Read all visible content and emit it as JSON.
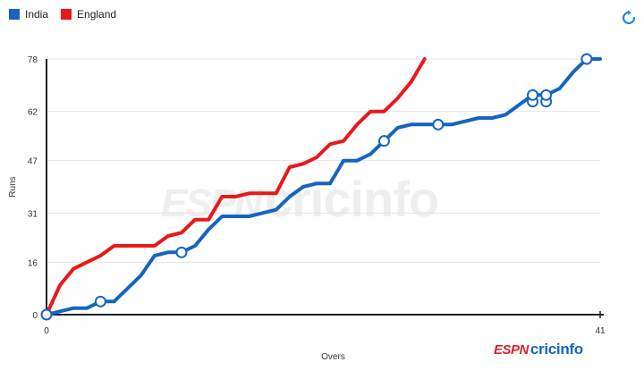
{
  "header": {
    "refresh_icon": "refresh-icon"
  },
  "branding": {
    "espn": "ESPN",
    "cricinfo": "cricinfo"
  },
  "chart_data": {
    "type": "line",
    "xlabel": "Overs",
    "ylabel": "Runs",
    "xlim": [
      0,
      41
    ],
    "ylim": [
      0,
      78
    ],
    "x_ticks": [
      0,
      41
    ],
    "y_ticks": [
      0,
      16,
      31,
      47,
      62,
      78
    ],
    "grid": true,
    "legend_position": "top-left",
    "series": [
      {
        "name": "India",
        "color": "#1565c0",
        "x": [
          0,
          1,
          2,
          3,
          4,
          5,
          6,
          7,
          8,
          9,
          10,
          11,
          12,
          13,
          14,
          15,
          16,
          17,
          18,
          19,
          20,
          21,
          22,
          23,
          24,
          25,
          26,
          27,
          28,
          29,
          30,
          31,
          32,
          33,
          34,
          35,
          36,
          37,
          38,
          39,
          40,
          41
        ],
        "y": [
          0,
          1,
          2,
          2,
          4,
          4,
          8,
          12,
          18,
          19,
          19,
          21,
          26,
          30,
          30,
          30,
          31,
          32,
          36,
          39,
          40,
          40,
          47,
          47,
          49,
          53,
          57,
          58,
          58,
          58,
          58,
          59,
          60,
          60,
          61,
          64,
          67,
          67,
          69,
          74,
          78,
          78
        ],
        "wickets": [
          [
            0,
            0
          ],
          [
            4,
            4
          ],
          [
            10,
            19
          ],
          [
            25,
            53
          ],
          [
            29,
            58
          ],
          [
            36,
            65
          ],
          [
            36,
            67
          ],
          [
            37,
            65
          ],
          [
            37,
            67
          ],
          [
            40,
            78
          ]
        ]
      },
      {
        "name": "England",
        "color": "#e8191b",
        "x": [
          0,
          1,
          2,
          3,
          4,
          5,
          6,
          7,
          8,
          9,
          10,
          11,
          12,
          13,
          14,
          15,
          16,
          17,
          18,
          19,
          20,
          21,
          22,
          23,
          24,
          25,
          26,
          27,
          28
        ],
        "y": [
          0,
          9,
          14,
          16,
          18,
          21,
          21,
          21,
          21,
          24,
          25,
          29,
          29,
          36,
          36,
          37,
          37,
          37,
          45,
          46,
          48,
          52,
          53,
          58,
          62,
          62,
          66,
          71,
          78
        ]
      }
    ]
  }
}
